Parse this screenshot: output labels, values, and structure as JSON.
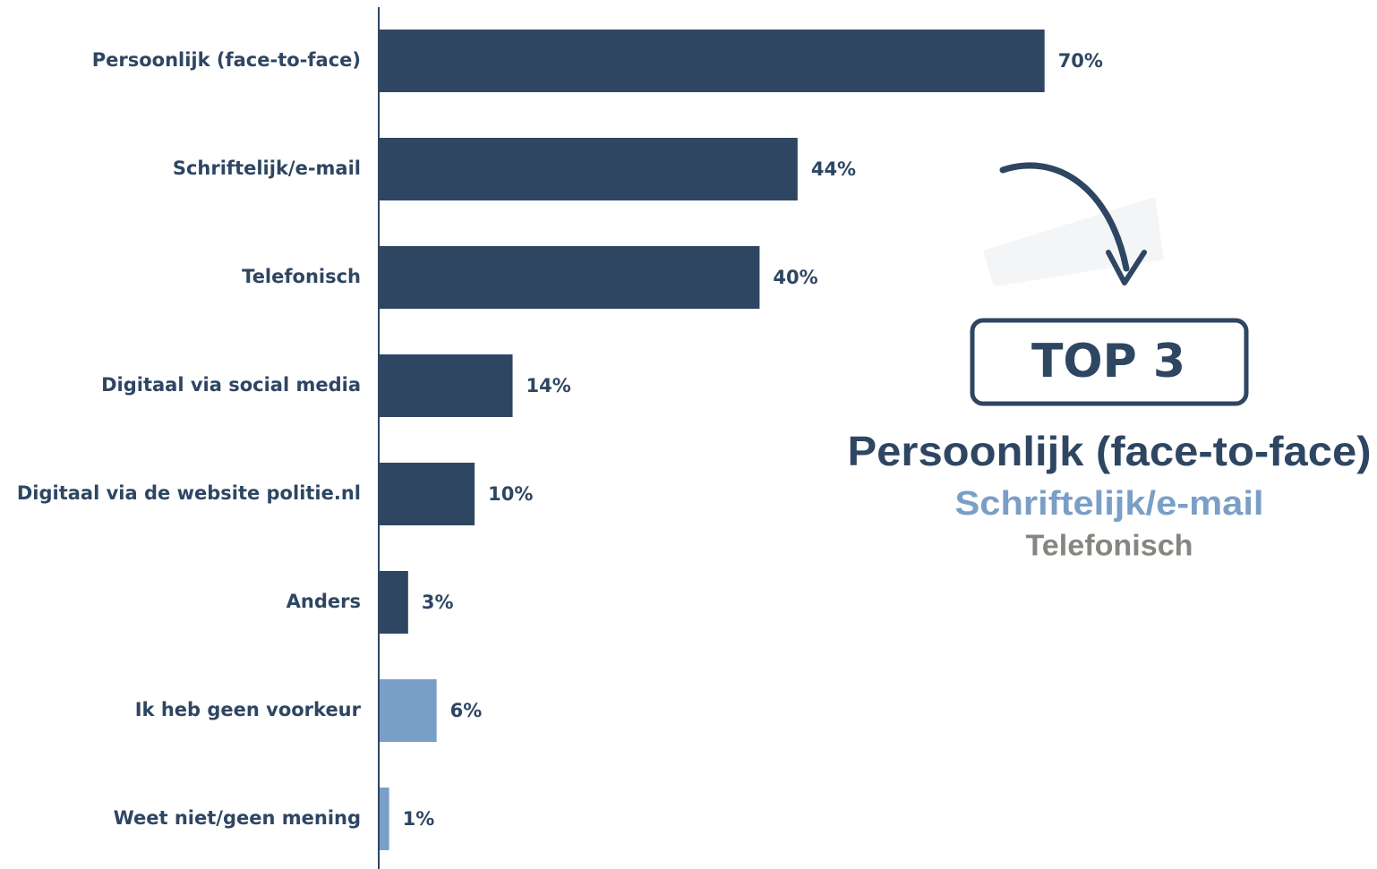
{
  "chart_data": {
    "type": "bar",
    "orientation": "horizontal",
    "categories": [
      "Persoonlijk (face-to-face)",
      "Schriftelijk/e-mail",
      "Telefonisch",
      "Digitaal via social media",
      "Digitaal via de website politie.nl",
      "Anders",
      "Ik heb geen voorkeur",
      "Weet niet/geen mening"
    ],
    "values": [
      70,
      44,
      40,
      14,
      10,
      3,
      6,
      1
    ],
    "value_labels": [
      "70%",
      "44%",
      "40%",
      "14%",
      "10%",
      "3%",
      "6%",
      "1%"
    ],
    "colors": [
      "#2e4662",
      "#2e4662",
      "#2e4662",
      "#2e4662",
      "#2e4662",
      "#2e4662",
      "#7a9fc7",
      "#7a9fc7"
    ],
    "annotation": {
      "badge": "TOP 3",
      "items": [
        {
          "text": "Persoonlijk (face-to-face)",
          "color": "#2e4662"
        },
        {
          "text": "Schriftelijk/e-mail",
          "color": "#7a9fc7"
        },
        {
          "text": "Telefonisch",
          "color": "#888580"
        }
      ]
    }
  }
}
